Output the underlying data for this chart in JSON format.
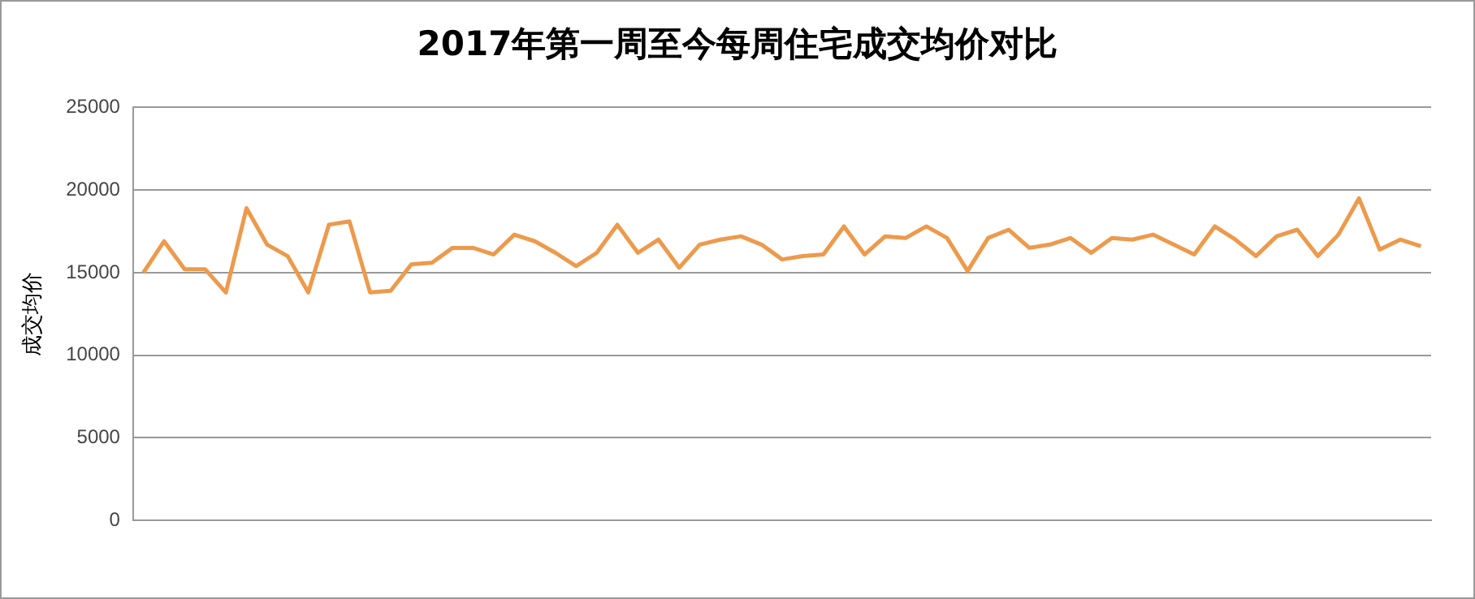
{
  "chart_data": {
    "type": "line",
    "title": "2017年第一周至今每周住宅成交均价对比",
    "ylabel": "成交均价",
    "categories": [
      null,
      null,
      null,
      null,
      null,
      null,
      null,
      null,
      null,
      null,
      null,
      null,
      null,
      null,
      null,
      null,
      null,
      null,
      null,
      null,
      null,
      null,
      null,
      null,
      null,
      null,
      null,
      null,
      null,
      null,
      null,
      null,
      null,
      null,
      null,
      null,
      null,
      null,
      null,
      null,
      null,
      null,
      null,
      null,
      null,
      null,
      null,
      null,
      null,
      null,
      null,
      null,
      null,
      null,
      null,
      null,
      null,
      null,
      null,
      null,
      null,
      null,
      null
    ],
    "series": [
      {
        "color": "#ed9a4c",
        "values": [
          15000,
          16900,
          15200,
          15200,
          13800,
          18900,
          16700,
          16000,
          13800,
          17900,
          18100,
          13800,
          13900,
          15500,
          15600,
          16500,
          16500,
          16100,
          17300,
          16900,
          16200,
          15400,
          16200,
          17900,
          16200,
          17000,
          15300,
          16700,
          17000,
          17200,
          16700,
          15800,
          16000,
          16100,
          17800,
          16100,
          17200,
          17100,
          17800,
          17100,
          15100,
          17100,
          17600,
          16500,
          16700,
          17100,
          16200,
          17100,
          17000,
          17300,
          16700,
          16100,
          17800,
          17000,
          16000,
          17200,
          17600,
          16000,
          17300,
          19500,
          16400,
          17000,
          16600
        ]
      }
    ],
    "ylim": [
      0,
      25000
    ],
    "yticks": [
      0,
      5000,
      10000,
      15000,
      20000,
      25000
    ],
    "grid": "y",
    "legend": false,
    "marker": "none",
    "line_style": "solid"
  }
}
